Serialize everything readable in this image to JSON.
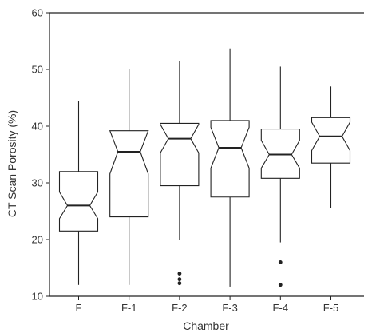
{
  "chart_data": {
    "type": "boxplot",
    "notched": true,
    "xlabel": "Chamber",
    "ylabel": "CT Scan Porosity (%)",
    "ylim": [
      10,
      60
    ],
    "yticks": [
      10,
      20,
      30,
      40,
      50,
      60
    ],
    "grid": false,
    "categories": [
      "F",
      "F-1",
      "F-2",
      "F-3",
      "F-4",
      "F-5"
    ],
    "boxes": [
      {
        "category": "F",
        "min": 12,
        "q1": 21.5,
        "median": 26,
        "q3": 32,
        "max": 44.5,
        "notch_low": 23.7,
        "notch_high": 28.4,
        "outliers": []
      },
      {
        "category": "F-1",
        "min": 12,
        "q1": 24,
        "median": 35.5,
        "q3": 39.2,
        "max": 50,
        "notch_low": 31.6,
        "notch_high": 39.2,
        "outliers": []
      },
      {
        "category": "F-2",
        "min": 20,
        "q1": 29.5,
        "median": 37.8,
        "q3": 40.5,
        "max": 51.5,
        "notch_low": 35.3,
        "notch_high": 40.3,
        "outliers": [
          14,
          13,
          12.3
        ]
      },
      {
        "category": "F-3",
        "min": 11.7,
        "q1": 27.5,
        "median": 36.2,
        "q3": 41,
        "max": 53.7,
        "notch_low": 32.6,
        "notch_high": 39.8,
        "outliers": []
      },
      {
        "category": "F-4",
        "min": 19.5,
        "q1": 30.8,
        "median": 35,
        "q3": 39.5,
        "max": 50.5,
        "notch_low": 32.6,
        "notch_high": 37.5,
        "outliers": [
          16,
          12
        ]
      },
      {
        "category": "F-5",
        "min": 25.5,
        "q1": 33.5,
        "median": 38.2,
        "q3": 41.5,
        "max": 47,
        "notch_low": 35.7,
        "notch_high": 40.7,
        "outliers": []
      }
    ]
  }
}
